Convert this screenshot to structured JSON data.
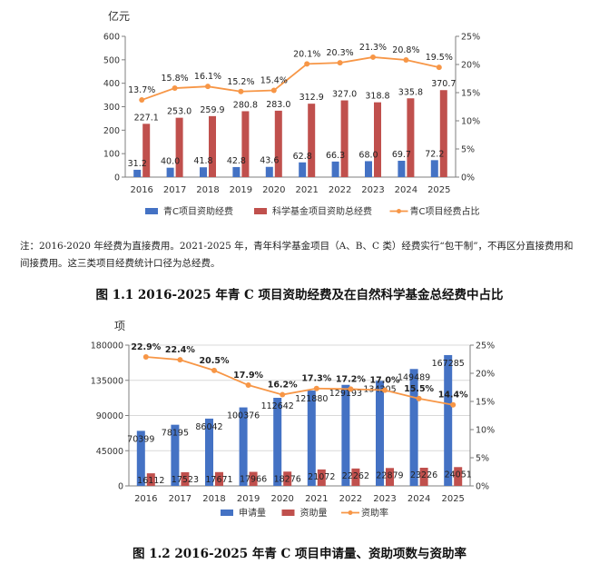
{
  "note": "注：2016-2020 年经费为直接费用。2021-2025 年，青年科学基金项目（A、B、C 类）经费实行“包干制”，不再区分直接费用和间接费用。这三类项目经费统计口径为总经费。",
  "figure1_caption": "图 1.1 2016-2025 年青 C 项目资助经费及在自然科学基金总经费中占比",
  "figure2_caption": "图 1.2 2016-2025 年青 C 项目申请量、资助项数与资助率",
  "colors": {
    "blue": "#4472C4",
    "red": "#C0504D",
    "orange": "#F79646"
  },
  "chart_data": [
    {
      "type": "bar",
      "categories": [
        "2016",
        "2017",
        "2018",
        "2019",
        "2020",
        "2021",
        "2022",
        "2023",
        "2024",
        "2025"
      ],
      "ylabel": "亿元",
      "ylim": [
        0,
        600
      ],
      "yticks": [
        "0",
        "100",
        "200",
        "300",
        "400",
        "500",
        "600"
      ],
      "y2lim": [
        0,
        25
      ],
      "y2ticks": [
        "0%",
        "5%",
        "10%",
        "15%",
        "20%",
        "25%"
      ],
      "legend_position": "bottom",
      "series": [
        {
          "name": "青C项目资助经费",
          "type": "bar",
          "axis": "left",
          "color": "#4472C4",
          "values": [
            31.2,
            40.0,
            41.8,
            42.8,
            43.6,
            62.8,
            66.3,
            68.0,
            69.7,
            72.2
          ],
          "labels": [
            "31.2",
            "40.0",
            "41.8",
            "42.8",
            "43.6",
            "62.8",
            "66.3",
            "68.0",
            "69.7",
            "72.2"
          ]
        },
        {
          "name": "科学基金项目资助总经费",
          "type": "bar",
          "axis": "left",
          "color": "#C0504D",
          "values": [
            227.1,
            253.0,
            259.9,
            280.8,
            283.0,
            312.9,
            327.0,
            318.8,
            335.8,
            370.7
          ],
          "labels": [
            "227.1",
            "253.0",
            "259.9",
            "280.8",
            "283.0",
            "312.9",
            "327.0",
            "318.8",
            "335.8",
            "370.7"
          ]
        },
        {
          "name": "青C项目经费占比",
          "type": "line",
          "axis": "right",
          "color": "#F79646",
          "values": [
            13.7,
            15.8,
            16.1,
            15.2,
            15.4,
            20.1,
            20.3,
            21.3,
            20.8,
            19.5
          ],
          "labels": [
            "13.7%",
            "15.8%",
            "16.1%",
            "15.2%",
            "15.4%",
            "20.1%",
            "20.3%",
            "21.3%",
            "20.8%",
            "19.5%"
          ]
        }
      ]
    },
    {
      "type": "bar",
      "categories": [
        "2016",
        "2017",
        "2018",
        "2019",
        "2020",
        "2021",
        "2022",
        "2023",
        "2024",
        "2025"
      ],
      "ylabel": "项",
      "ylim": [
        0,
        180000
      ],
      "yticks": [
        "0",
        "45000",
        "90000",
        "135000",
        "180000"
      ],
      "y2lim": [
        0,
        25
      ],
      "y2ticks": [
        "0%",
        "5%",
        "10%",
        "15%",
        "20%",
        "25%"
      ],
      "legend_position": "bottom",
      "series": [
        {
          "name": "申请量",
          "type": "bar",
          "axis": "left",
          "color": "#4472C4",
          "values": [
            70399,
            78195,
            86042,
            100376,
            112642,
            121880,
            129193,
            134305,
            149489,
            167285
          ],
          "labels": [
            "70399",
            "78195",
            "86042",
            "100376",
            "112642",
            "121880",
            "129193",
            "134305",
            "149489",
            "167285"
          ]
        },
        {
          "name": "资助量",
          "type": "bar",
          "axis": "left",
          "color": "#C0504D",
          "values": [
            16112,
            17523,
            17671,
            17966,
            18276,
            21072,
            22262,
            22879,
            23226,
            24051
          ],
          "labels": [
            "16112",
            "17523",
            "17671",
            "17966",
            "18276",
            "21072",
            "22262",
            "22879",
            "23226",
            "24051"
          ]
        },
        {
          "name": "资助率",
          "type": "line",
          "axis": "right",
          "color": "#F79646",
          "values": [
            22.9,
            22.4,
            20.5,
            17.9,
            16.2,
            17.3,
            17.2,
            17.0,
            15.5,
            14.4
          ],
          "labels": [
            "22.9%",
            "22.4%",
            "20.5%",
            "17.9%",
            "16.2%",
            "17.3%",
            "17.2%",
            "17.0%",
            "15.5%",
            "14.4%"
          ]
        }
      ]
    }
  ]
}
